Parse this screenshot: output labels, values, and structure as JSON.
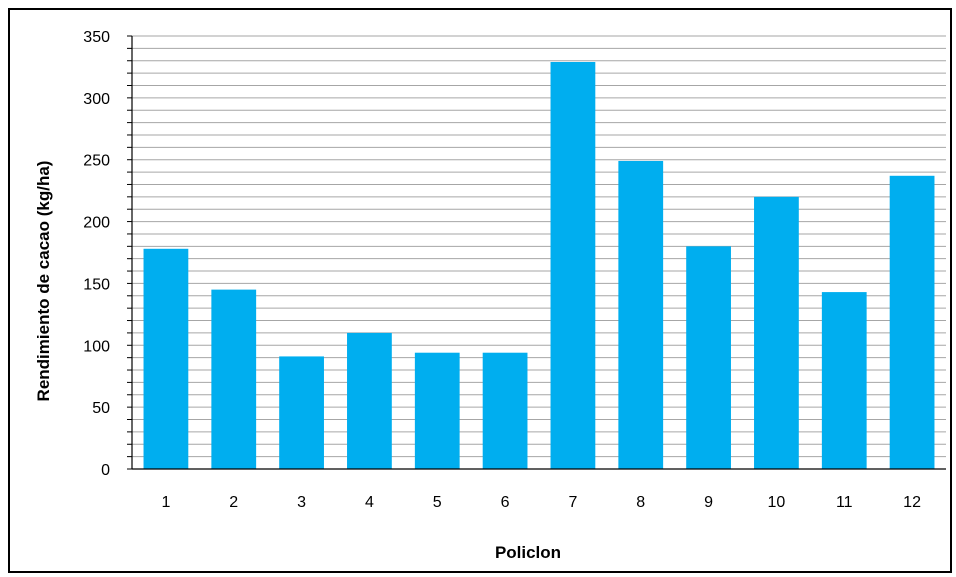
{
  "chart_data": {
    "type": "bar",
    "title": "",
    "xlabel": "Policlon",
    "ylabel": "Rendimiento de cacao (kg/ha)",
    "categories": [
      "1",
      "2",
      "3",
      "4",
      "5",
      "6",
      "7",
      "8",
      "9",
      "10",
      "11",
      "12"
    ],
    "values": [
      178,
      145,
      91,
      110,
      94,
      94,
      329,
      249,
      180,
      220,
      143,
      237
    ],
    "ylim": [
      0,
      350
    ],
    "y_major_ticks": [
      0,
      50,
      100,
      150,
      200,
      250,
      300,
      350
    ],
    "y_minor_step": 10,
    "grid": true,
    "legend": "none",
    "bar_color": "#00AEEF",
    "grid_color": "#A6A6A6"
  }
}
